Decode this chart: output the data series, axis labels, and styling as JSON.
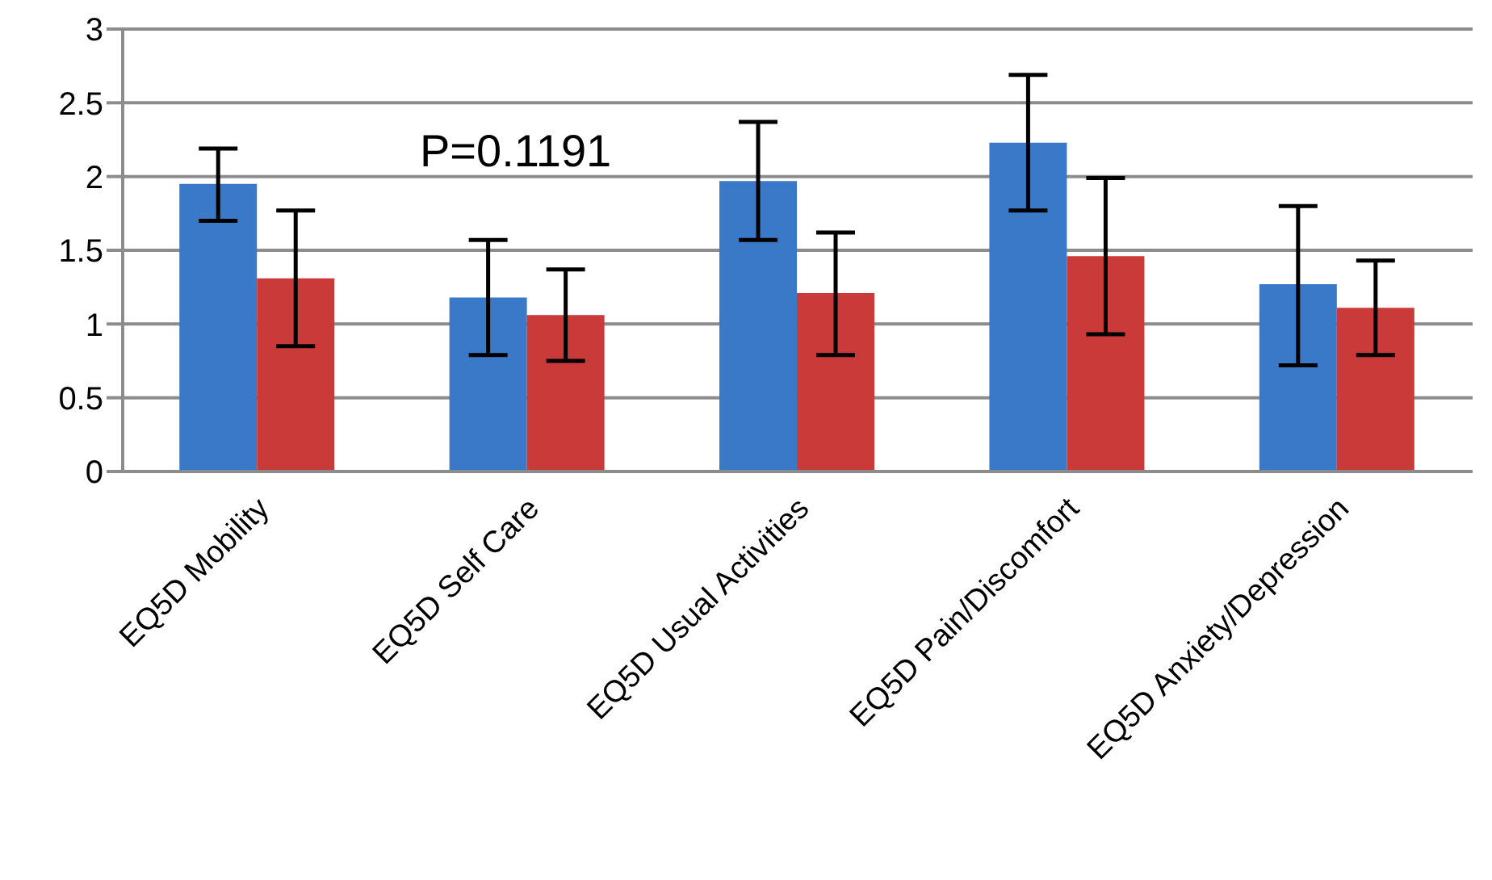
{
  "chart_data": {
    "type": "bar",
    "categories": [
      "EQ5D Mobility",
      "EQ5D Self Care",
      "EQ5D Usual Activities",
      "EQ5D Pain/Discomfort",
      "EQ5D Anxiety/Depression"
    ],
    "series": [
      {
        "color": "#3a78c8",
        "values": [
          1.95,
          1.18,
          1.97,
          2.23,
          1.27
        ],
        "errors": [
          [
            1.7,
            2.19
          ],
          [
            0.79,
            1.57
          ],
          [
            1.57,
            2.37
          ],
          [
            1.77,
            2.69
          ],
          [
            0.72,
            1.8
          ]
        ]
      },
      {
        "color": "#c93a38",
        "values": [
          1.31,
          1.06,
          1.21,
          1.46,
          1.11
        ],
        "errors": [
          [
            0.85,
            1.77
          ],
          [
            0.75,
            1.37
          ],
          [
            0.79,
            1.62
          ],
          [
            0.93,
            1.99
          ],
          [
            0.79,
            1.43
          ]
        ]
      }
    ],
    "ylim": [
      0,
      3
    ],
    "yticks": [
      0,
      0.5,
      1,
      1.5,
      2,
      2.5,
      3
    ],
    "grid": "y",
    "legend": false,
    "annotations": [
      "P=0.1191"
    ]
  }
}
